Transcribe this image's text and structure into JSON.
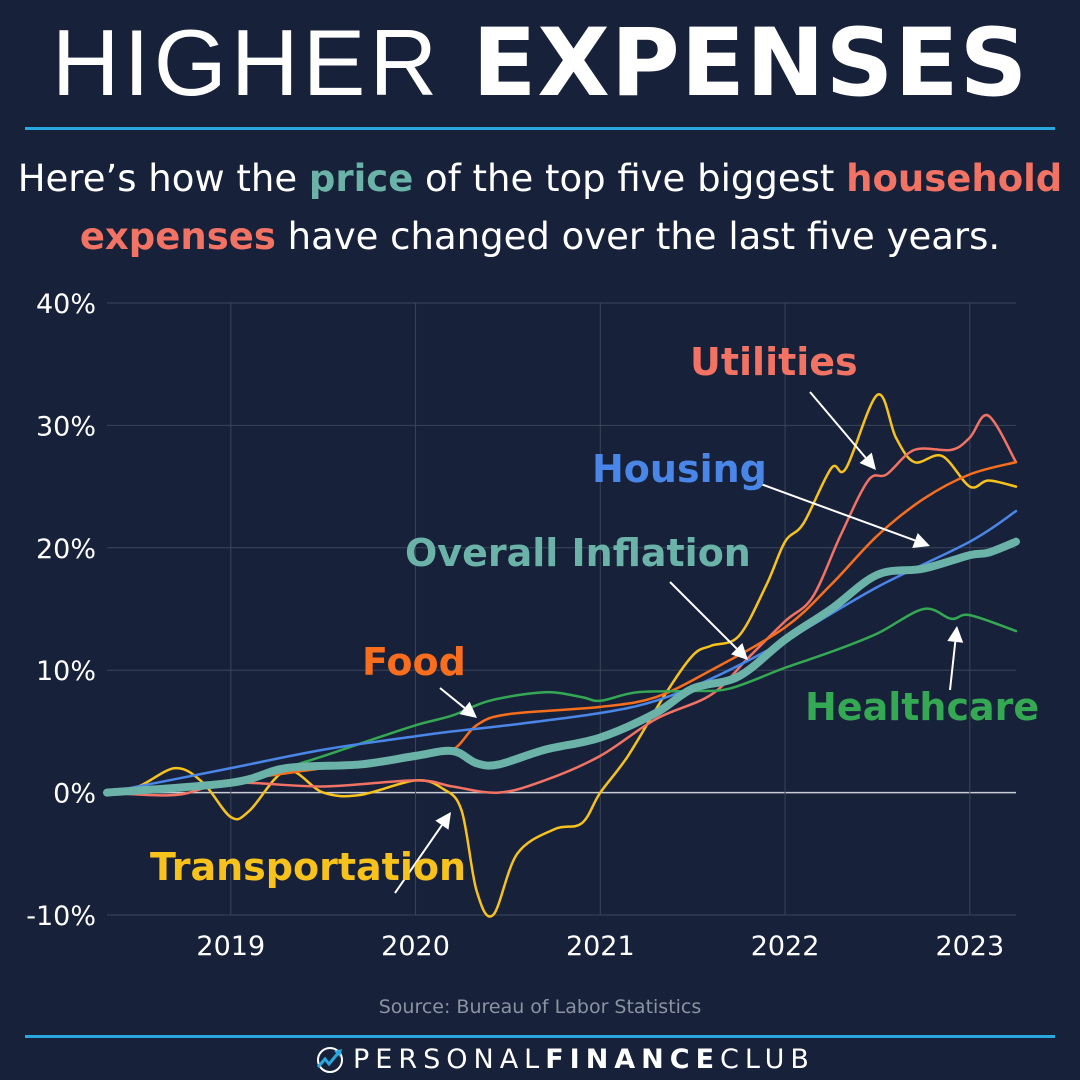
{
  "title": {
    "light": "HIGHER",
    "bold": "EXPENSES"
  },
  "subtitle": {
    "p1": "Here’s how the ",
    "price": "price",
    "p2": " of the top five biggest ",
    "household": "household",
    "expenses": "expenses",
    "p3": " have changed over the last five years."
  },
  "source": "Source: Bureau of Labor Statistics",
  "brand": {
    "light1": "PERSONAL",
    "bold": "FINANCE",
    "light2": "CLUB"
  },
  "colors": {
    "background": "#17223a",
    "accent": "#29a8e0",
    "overall": "#6bb3a8",
    "housing": "#4a86e8",
    "food": "#f86e1c",
    "utilities": "#f27264",
    "healthcare": "#35a853",
    "transportation": "#f8c21c"
  },
  "chart_data": {
    "type": "line",
    "title": "",
    "xlabel": "",
    "ylabel": "",
    "xlim": [
      2018.33,
      2023.25
    ],
    "ylim": [
      -10,
      40
    ],
    "grid": true,
    "x_ticks": [
      "2019",
      "2020",
      "2021",
      "2022",
      "2023"
    ],
    "y_ticks": [
      "-10%",
      "0%",
      "10%",
      "20%",
      "30%",
      "40%"
    ],
    "series": [
      {
        "name": "Transportation",
        "key": "transportation",
        "points": [
          [
            2018.33,
            0
          ],
          [
            2018.5,
            0.5
          ],
          [
            2018.7,
            2
          ],
          [
            2018.85,
            0.8
          ],
          [
            2019,
            -2
          ],
          [
            2019.1,
            -1.5
          ],
          [
            2019.3,
            1.8
          ],
          [
            2019.5,
            0
          ],
          [
            2019.7,
            -0.2
          ],
          [
            2020,
            1
          ],
          [
            2020.15,
            0.3
          ],
          [
            2020.25,
            -1.5
          ],
          [
            2020.33,
            -8
          ],
          [
            2020.42,
            -10
          ],
          [
            2020.55,
            -5
          ],
          [
            2020.75,
            -3
          ],
          [
            2020.9,
            -2.5
          ],
          [
            2021,
            0
          ],
          [
            2021.15,
            3
          ],
          [
            2021.35,
            8
          ],
          [
            2021.5,
            11.2
          ],
          [
            2021.6,
            12
          ],
          [
            2021.75,
            12.8
          ],
          [
            2021.9,
            17
          ],
          [
            2022,
            20.5
          ],
          [
            2022.1,
            22
          ],
          [
            2022.25,
            26.5
          ],
          [
            2022.33,
            26.5
          ],
          [
            2022.5,
            32.5
          ],
          [
            2022.6,
            29
          ],
          [
            2022.7,
            27
          ],
          [
            2022.85,
            27.5
          ],
          [
            2023,
            25
          ],
          [
            2023.1,
            25.5
          ],
          [
            2023.25,
            25
          ]
        ]
      },
      {
        "name": "Utilities",
        "key": "utilities",
        "points": [
          [
            2018.33,
            0
          ],
          [
            2018.7,
            -0.2
          ],
          [
            2019,
            0.8
          ],
          [
            2019.5,
            0.5
          ],
          [
            2020,
            1
          ],
          [
            2020.2,
            0.5
          ],
          [
            2020.45,
            0
          ],
          [
            2020.7,
            1
          ],
          [
            2021,
            3
          ],
          [
            2021.3,
            6
          ],
          [
            2021.6,
            8
          ],
          [
            2021.8,
            11
          ],
          [
            2022,
            14
          ],
          [
            2022.15,
            16
          ],
          [
            2022.3,
            21
          ],
          [
            2022.45,
            25.5
          ],
          [
            2022.55,
            26
          ],
          [
            2022.7,
            28
          ],
          [
            2022.9,
            28
          ],
          [
            2023,
            29
          ],
          [
            2023.1,
            30.8
          ],
          [
            2023.25,
            27
          ]
        ]
      },
      {
        "name": "Food",
        "key": "food",
        "points": [
          [
            2018.33,
            0
          ],
          [
            2019,
            1
          ],
          [
            2019.5,
            2
          ],
          [
            2020,
            3
          ],
          [
            2020.2,
            3.5
          ],
          [
            2020.33,
            5.5
          ],
          [
            2020.5,
            6.4
          ],
          [
            2021,
            7
          ],
          [
            2021.3,
            7.8
          ],
          [
            2021.6,
            10
          ],
          [
            2022,
            13.5
          ],
          [
            2022.25,
            17
          ],
          [
            2022.5,
            21
          ],
          [
            2022.75,
            24
          ],
          [
            2023,
            26
          ],
          [
            2023.25,
            27
          ]
        ]
      },
      {
        "name": "Healthcare",
        "key": "healthcare",
        "points": [
          [
            2018.33,
            0
          ],
          [
            2019,
            0.8
          ],
          [
            2019.4,
            2.5
          ],
          [
            2019.7,
            4
          ],
          [
            2020,
            5.5
          ],
          [
            2020.2,
            6.3
          ],
          [
            2020.4,
            7.5
          ],
          [
            2020.7,
            8.2
          ],
          [
            2020.9,
            7.8
          ],
          [
            2021,
            7.5
          ],
          [
            2021.2,
            8.2
          ],
          [
            2021.5,
            8.3
          ],
          [
            2021.7,
            8.5
          ],
          [
            2022,
            10.2
          ],
          [
            2022.25,
            11.5
          ],
          [
            2022.5,
            13
          ],
          [
            2022.75,
            15
          ],
          [
            2022.9,
            14.2
          ],
          [
            2023,
            14.5
          ],
          [
            2023.25,
            13.2
          ]
        ]
      },
      {
        "name": "Housing",
        "key": "housing",
        "points": [
          [
            2018.33,
            0
          ],
          [
            2019,
            2
          ],
          [
            2019.5,
            3.5
          ],
          [
            2020,
            4.6
          ],
          [
            2020.2,
            5
          ],
          [
            2020.5,
            5.5
          ],
          [
            2021,
            6.5
          ],
          [
            2021.3,
            7.5
          ],
          [
            2021.6,
            9.3
          ],
          [
            2022,
            12.4
          ],
          [
            2022.5,
            16.8
          ],
          [
            2023,
            20.5
          ],
          [
            2023.25,
            23
          ]
        ]
      },
      {
        "name": "Overall Inflation",
        "key": "overall",
        "points": [
          [
            2018.33,
            0
          ],
          [
            2019,
            0.8
          ],
          [
            2019.3,
            2
          ],
          [
            2019.7,
            2.3
          ],
          [
            2020,
            3
          ],
          [
            2020.2,
            3.4
          ],
          [
            2020.33,
            2.4
          ],
          [
            2020.45,
            2.3
          ],
          [
            2020.7,
            3.5
          ],
          [
            2021,
            4.5
          ],
          [
            2021.3,
            6.5
          ],
          [
            2021.5,
            8.5
          ],
          [
            2021.75,
            9.5
          ],
          [
            2022,
            12.5
          ],
          [
            2022.25,
            15
          ],
          [
            2022.5,
            17.8
          ],
          [
            2022.75,
            18.3
          ],
          [
            2023,
            19.4
          ],
          [
            2023.1,
            19.6
          ],
          [
            2023.25,
            20.5
          ]
        ]
      }
    ]
  }
}
